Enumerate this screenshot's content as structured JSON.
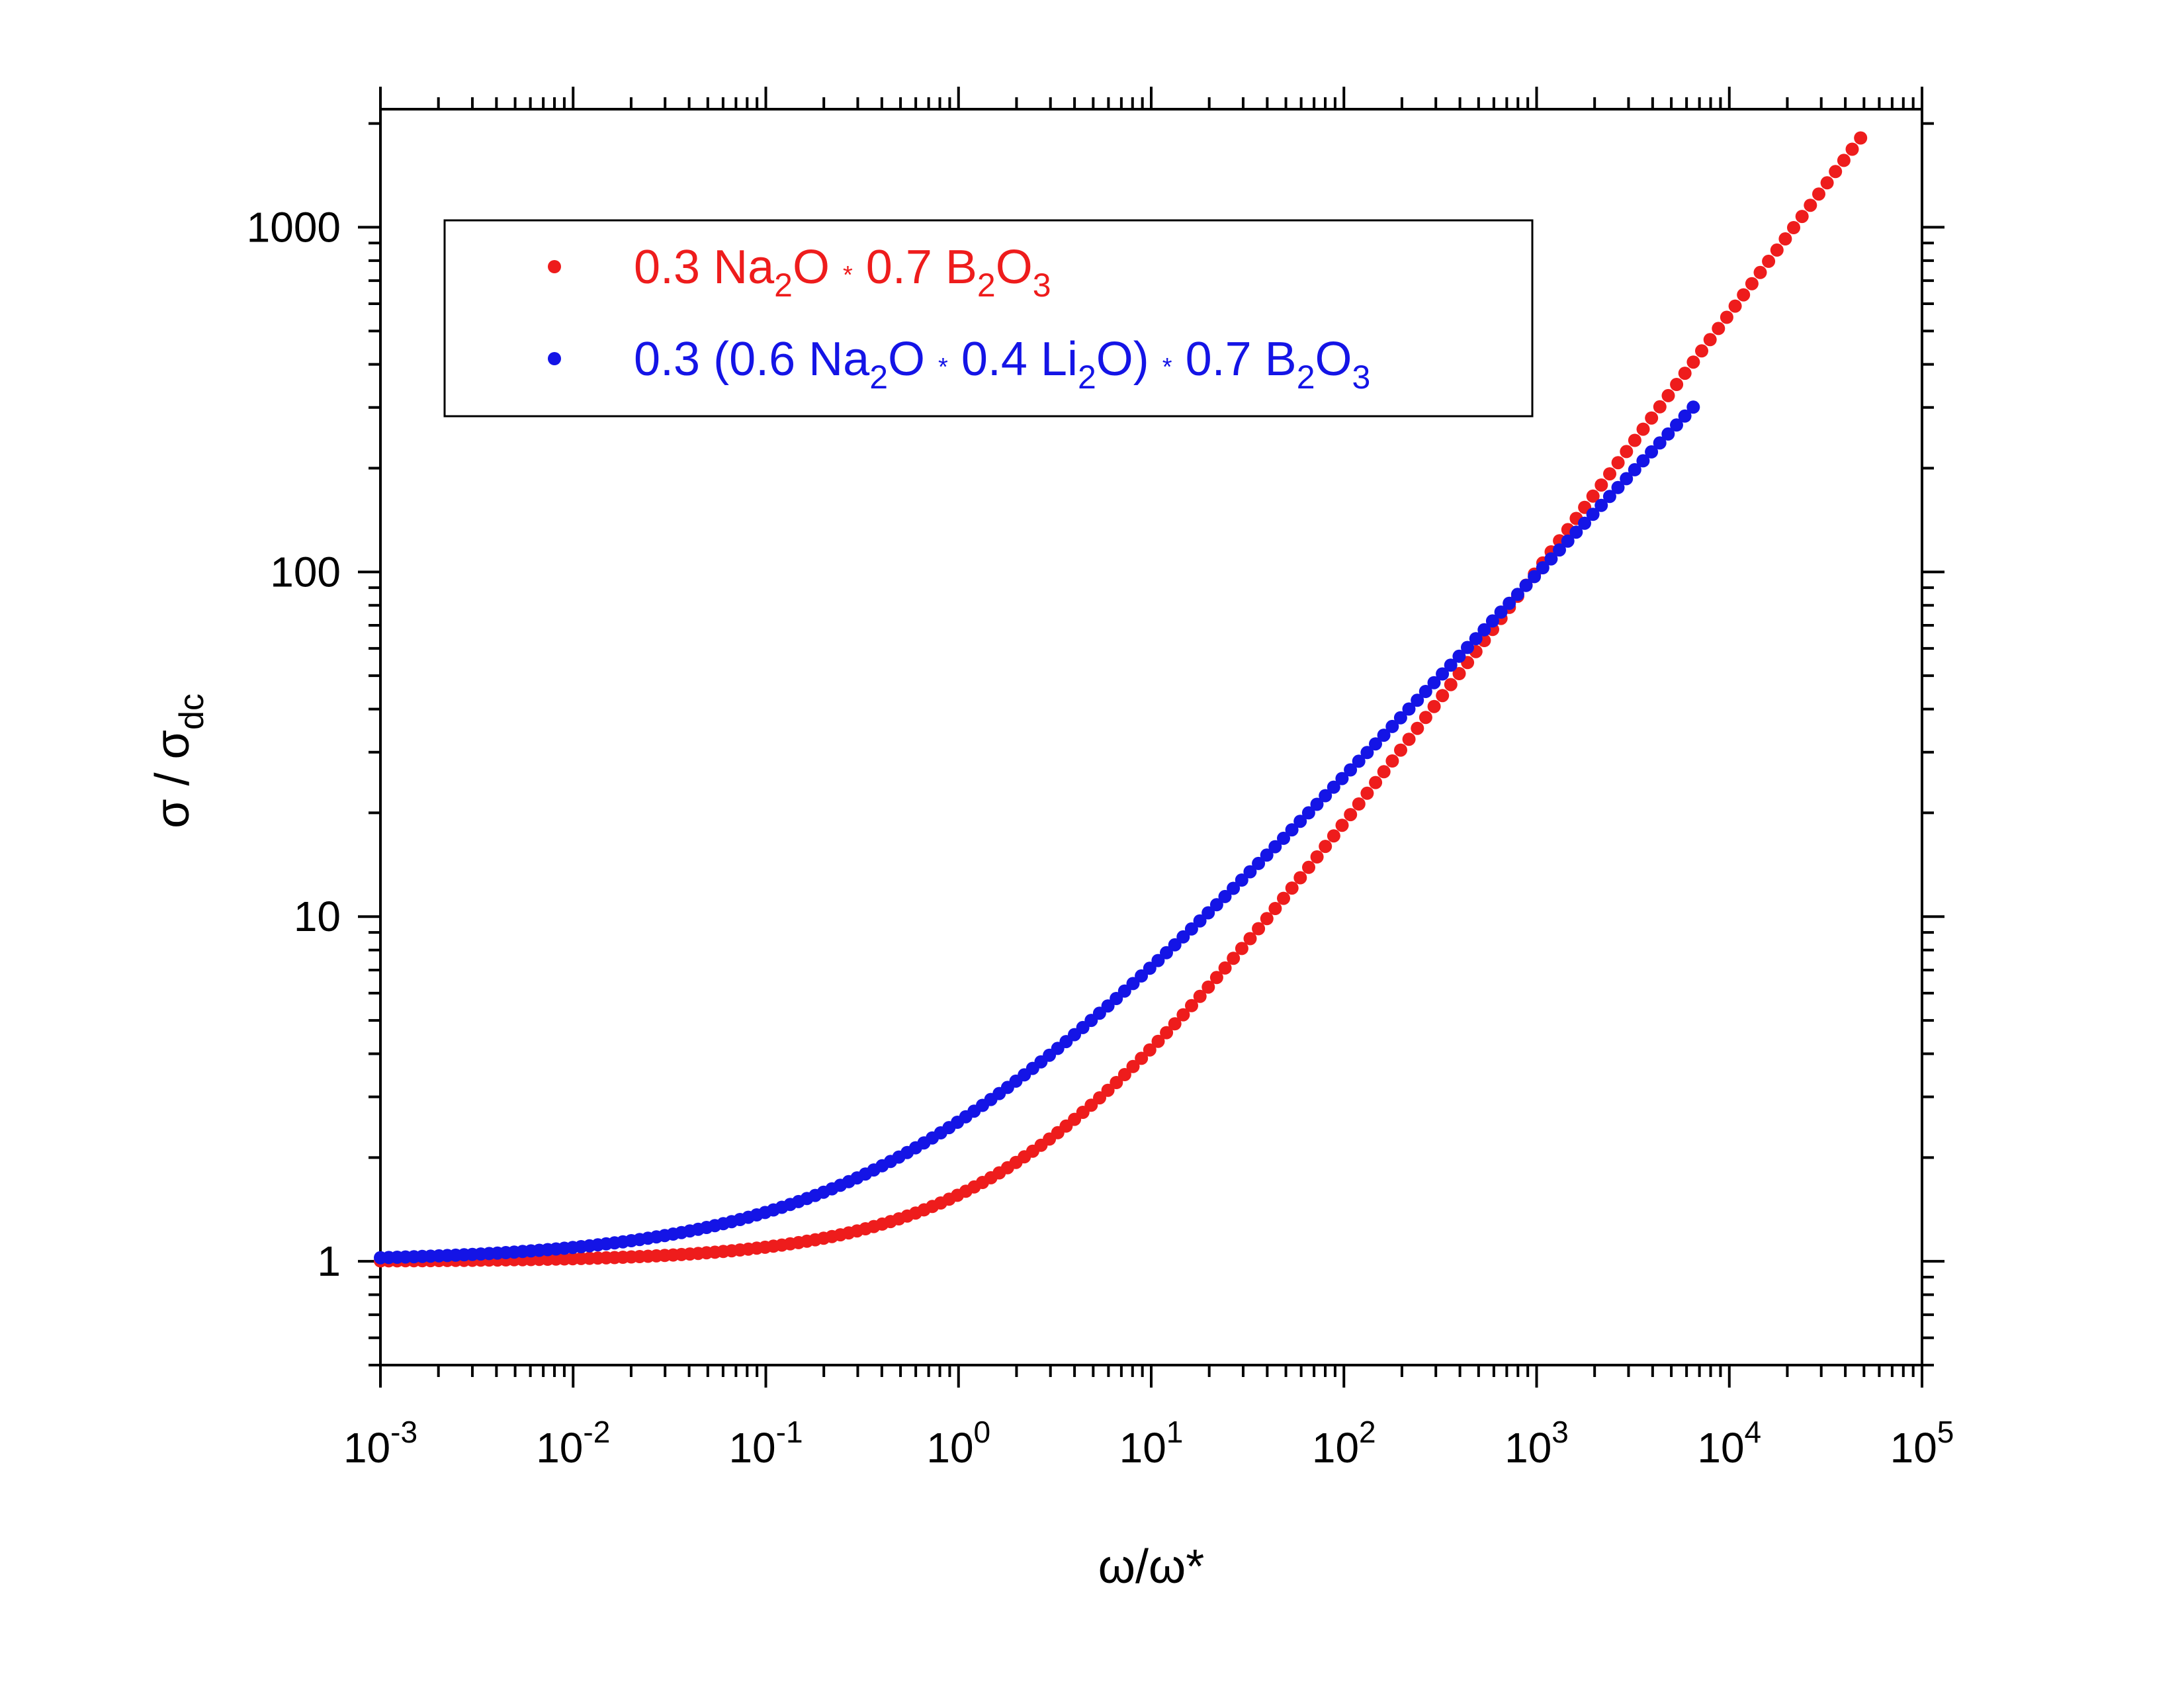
{
  "chart_data": {
    "type": "scatter",
    "xscale": "log",
    "yscale": "log",
    "xlim": [
      0.001,
      100000
    ],
    "ylim": [
      0.5,
      2200
    ],
    "xlabel": "ω/ω*",
    "ylabel": {
      "main": "σ / σ",
      "sub": "dc"
    },
    "x_tick_labels": [
      {
        "base": "10",
        "exp": "-3"
      },
      {
        "base": "10",
        "exp": "-2"
      },
      {
        "base": "10",
        "exp": "-1"
      },
      {
        "base": "10",
        "exp": "0"
      },
      {
        "base": "10",
        "exp": "1"
      },
      {
        "base": "10",
        "exp": "2"
      },
      {
        "base": "10",
        "exp": "3"
      },
      {
        "base": "10",
        "exp": "4"
      },
      {
        "base": "10",
        "exp": "5"
      }
    ],
    "y_tick_labels": [
      "1",
      "10",
      "100",
      "1000"
    ],
    "legend_position": "top-left",
    "series": [
      {
        "name": "0.3 Na2O * 0.7 B2O3",
        "color": "#ee1c1c",
        "label_parts": [
          {
            "t": "0.3 Na"
          },
          {
            "t": "2",
            "sub": true
          },
          {
            "t": "O "
          },
          {
            "t": "*",
            "small": true
          },
          {
            "t": " 0.7 B"
          },
          {
            "t": "2",
            "sub": true
          },
          {
            "t": "O"
          },
          {
            "t": "3",
            "sub": true
          }
        ],
        "x_range": [
          0.001,
          48000
        ],
        "y_params": {
          "m": 0.75,
          "b": 0.72,
          "tau": 1.4
        },
        "points": [
          [
            0.001,
            1.0
          ],
          [
            0.01,
            1.0
          ],
          [
            0.1,
            1.13
          ],
          [
            0.3,
            1.45
          ],
          [
            1,
            2.0
          ],
          [
            3,
            3.1
          ],
          [
            10,
            5.5
          ],
          [
            30,
            10.5
          ],
          [
            100,
            22
          ],
          [
            300,
            48
          ],
          [
            1000,
            100
          ],
          [
            3000,
            240
          ],
          [
            10000,
            560
          ],
          [
            48000,
            1900
          ]
        ]
      },
      {
        "name": "0.3 (0.6 Na2O * 0.4 Li2O) * 0.7 B2O3",
        "color": "#1414e6",
        "label_parts": [
          {
            "t": "0.3 (0.6 Na"
          },
          {
            "t": "2",
            "sub": true
          },
          {
            "t": "O "
          },
          {
            "t": "*",
            "small": true
          },
          {
            "t": " 0.4 Li"
          },
          {
            "t": "2",
            "sub": true
          },
          {
            "t": "O) "
          },
          {
            "t": "*",
            "small": true
          },
          {
            "t": " 0.7 B"
          },
          {
            "t": "2",
            "sub": true
          },
          {
            "t": "O"
          },
          {
            "t": "3",
            "sub": true
          }
        ],
        "x_range": [
          0.001,
          6500
        ],
        "y_params": {
          "m": 0.6,
          "b": 0.75,
          "tau": 0.3
        },
        "points": [
          [
            0.001,
            1.02
          ],
          [
            0.01,
            1.1
          ],
          [
            0.1,
            1.35
          ],
          [
            0.3,
            1.6
          ],
          [
            1,
            2.0
          ],
          [
            3,
            2.9
          ],
          [
            10,
            4.3
          ],
          [
            30,
            7.0
          ],
          [
            100,
            13
          ],
          [
            300,
            24
          ],
          [
            1000,
            48
          ],
          [
            3000,
            100
          ],
          [
            6500,
            175
          ]
        ]
      }
    ]
  }
}
